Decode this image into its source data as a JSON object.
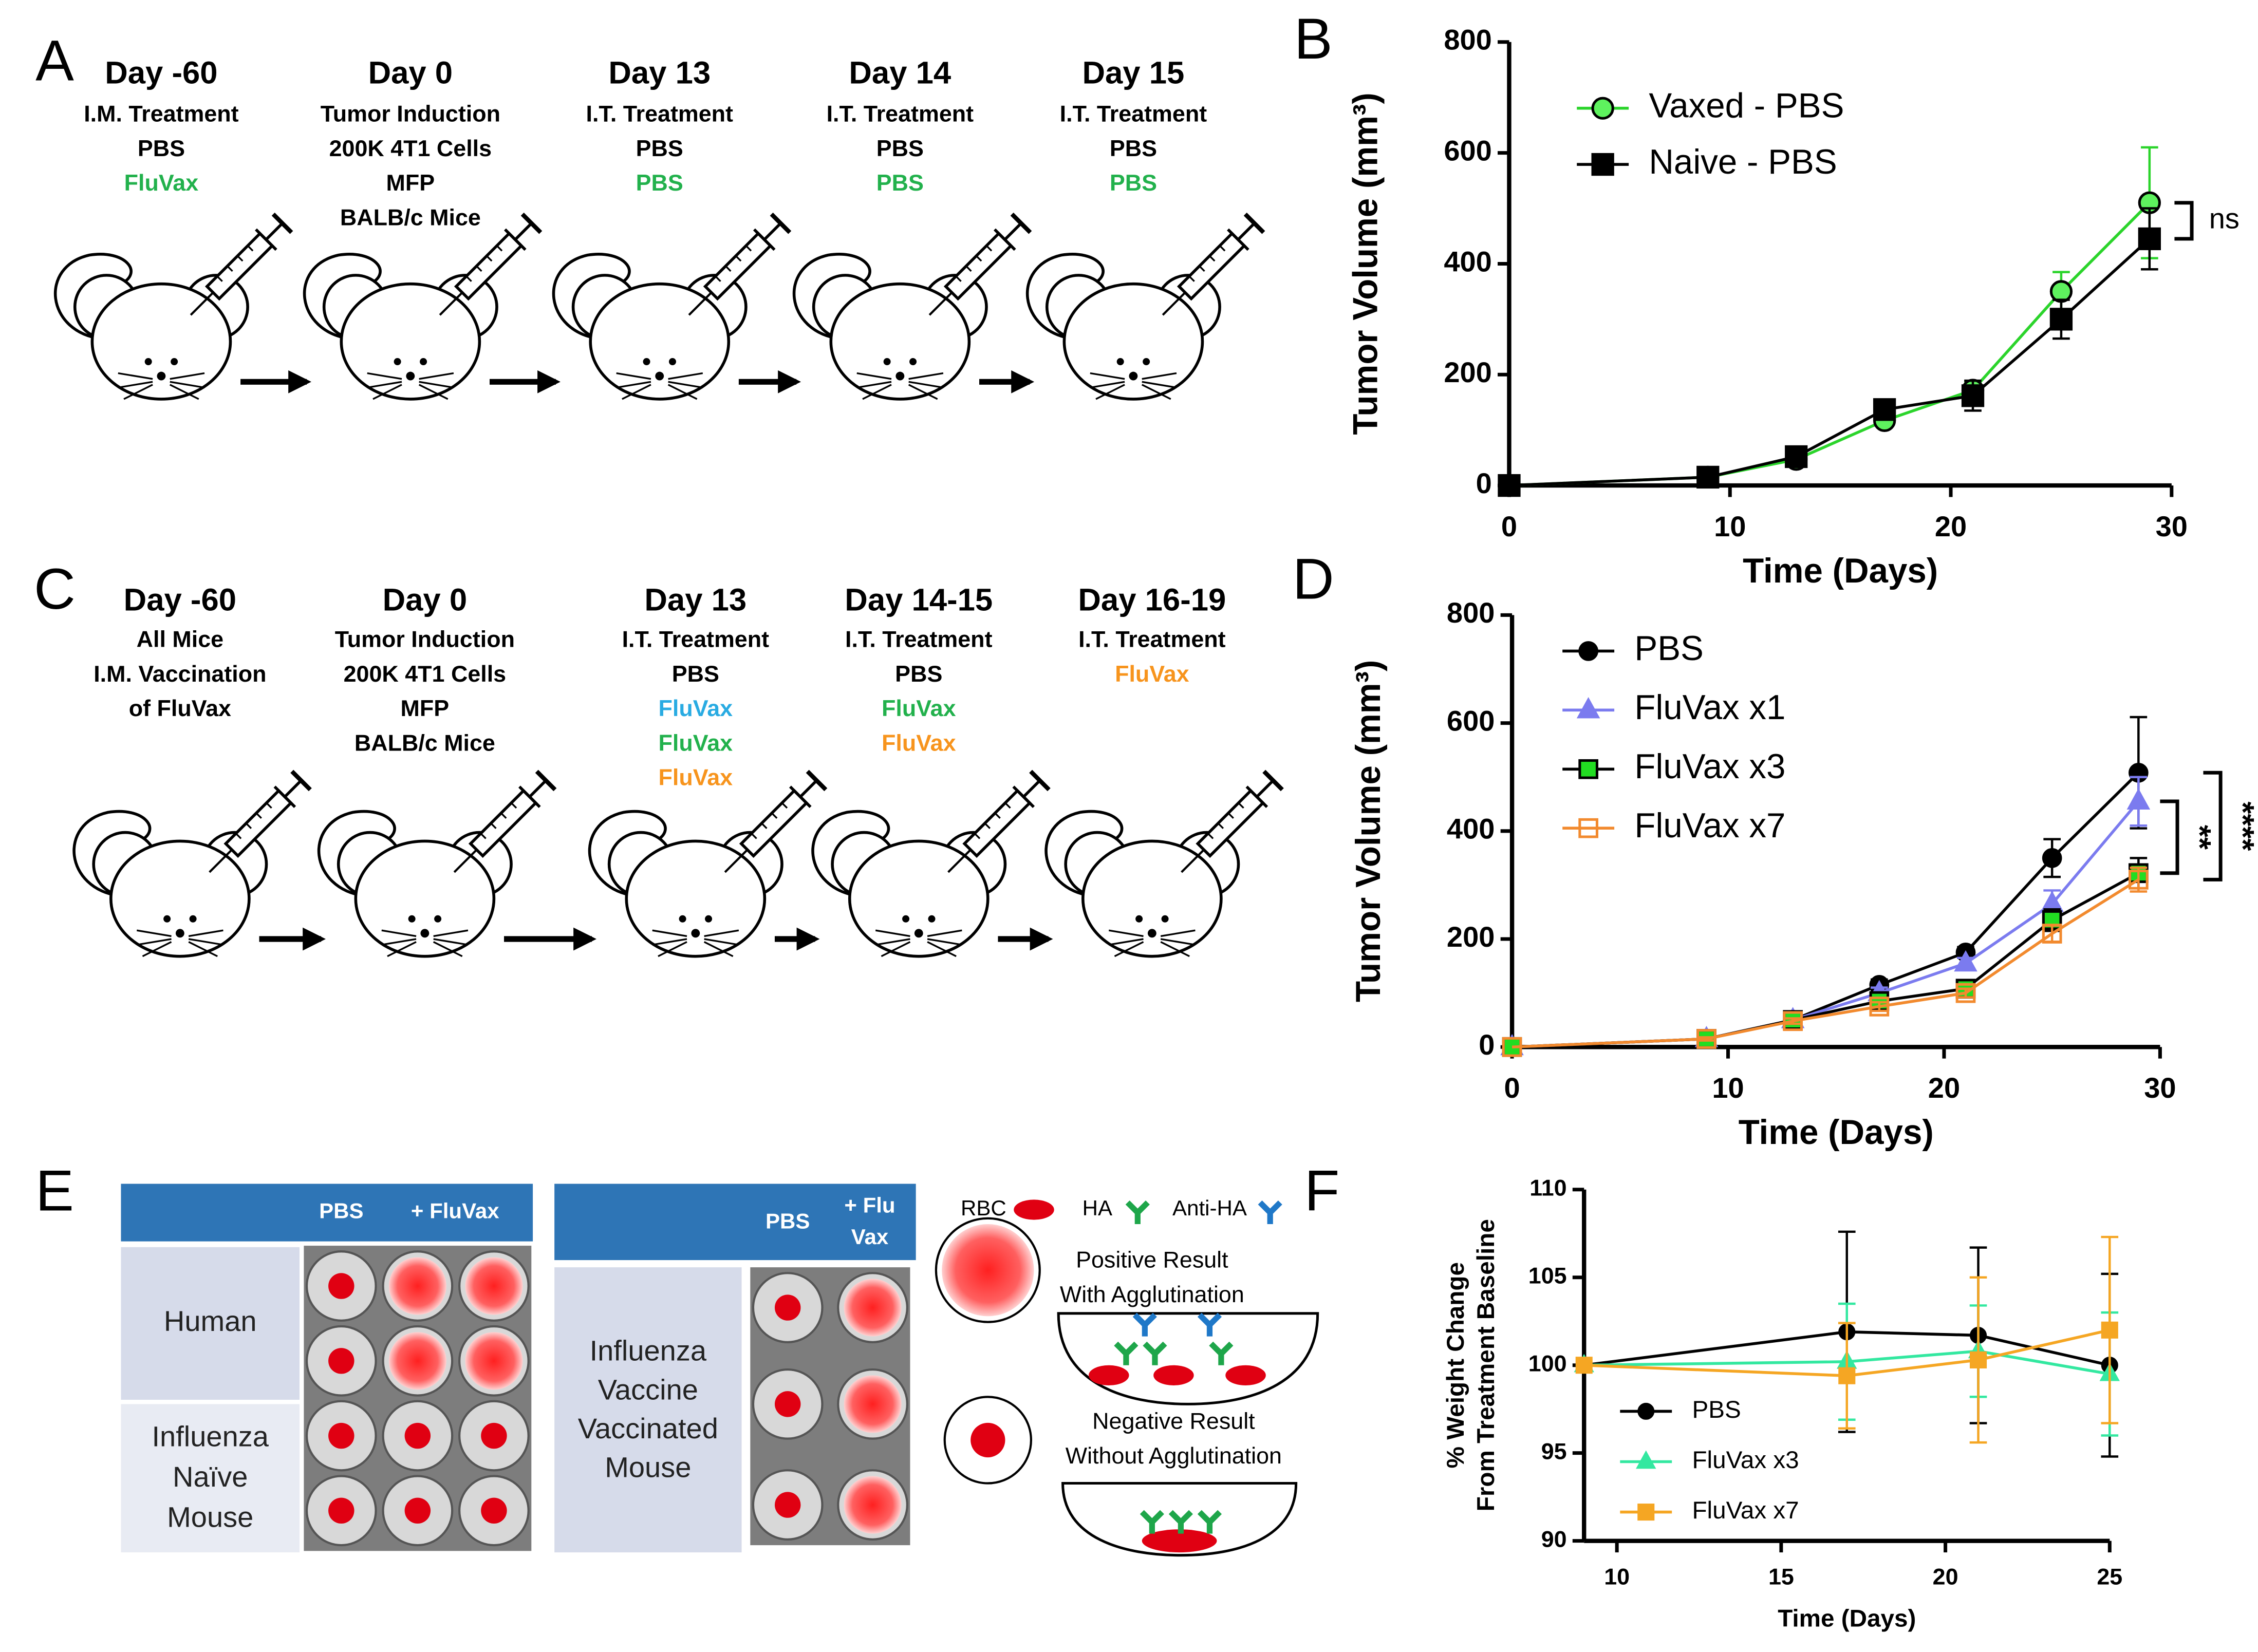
{
  "timeline_a": {
    "panel_label": "A",
    "steps": [
      {
        "day": "Day -60",
        "lines": [
          {
            "text": "I.M. Treatment",
            "color": "#000000"
          },
          {
            "text": "PBS",
            "color": "#000000"
          },
          {
            "text": "FluVax",
            "color": "#22b14c"
          }
        ]
      },
      {
        "day": "Day 0",
        "lines": [
          {
            "text": "Tumor Induction",
            "color": "#000000"
          },
          {
            "text": "200K 4T1 Cells",
            "color": "#000000"
          },
          {
            "text": "MFP",
            "color": "#000000"
          },
          {
            "text": "BALB/c Mice",
            "color": "#000000"
          }
        ]
      },
      {
        "day": "Day 13",
        "lines": [
          {
            "text": "I.T. Treatment",
            "color": "#000000"
          },
          {
            "text": "PBS",
            "color": "#000000"
          },
          {
            "text": "PBS",
            "color": "#22b14c"
          }
        ]
      },
      {
        "day": "Day 14",
        "lines": [
          {
            "text": "I.T. Treatment",
            "color": "#000000"
          },
          {
            "text": "PBS",
            "color": "#000000"
          },
          {
            "text": "PBS",
            "color": "#22b14c"
          }
        ]
      },
      {
        "day": "Day 15",
        "lines": [
          {
            "text": "I.T. Treatment",
            "color": "#000000"
          },
          {
            "text": "PBS",
            "color": "#000000"
          },
          {
            "text": "PBS",
            "color": "#22b14c"
          }
        ]
      }
    ]
  },
  "timeline_c": {
    "panel_label": "C",
    "steps": [
      {
        "day": "Day -60",
        "lines": [
          {
            "text": "All Mice",
            "color": "#000000"
          },
          {
            "text": "I.M. Vaccination",
            "color": "#000000"
          },
          {
            "text": "of FluVax",
            "color": "#000000"
          }
        ]
      },
      {
        "day": "Day 0",
        "lines": [
          {
            "text": "Tumor Induction",
            "color": "#000000"
          },
          {
            "text": "200K 4T1 Cells",
            "color": "#000000"
          },
          {
            "text": "MFP",
            "color": "#000000"
          },
          {
            "text": "BALB/c Mice",
            "color": "#000000"
          }
        ]
      },
      {
        "day": "Day 13",
        "lines": [
          {
            "text": "I.T. Treatment",
            "color": "#000000"
          },
          {
            "text": "PBS",
            "color": "#000000"
          },
          {
            "text": "FluVax",
            "color": "#29abe2"
          },
          {
            "text": "FluVax",
            "color": "#22b14c"
          },
          {
            "text": "FluVax",
            "color": "#f7941d"
          }
        ]
      },
      {
        "day": "Day 14-15",
        "lines": [
          {
            "text": "I.T. Treatment",
            "color": "#000000"
          },
          {
            "text": "PBS",
            "color": "#000000"
          },
          {
            "text": "FluVax",
            "color": "#22b14c"
          },
          {
            "text": "FluVax",
            "color": "#f7941d"
          }
        ]
      },
      {
        "day": "Day 16-19",
        "lines": [
          {
            "text": "I.T. Treatment",
            "color": "#000000"
          },
          {
            "text": "FluVax",
            "color": "#f7941d"
          }
        ]
      }
    ]
  },
  "chart_data": [
    {
      "type": "line",
      "panel_label": "B",
      "xlabel": "Time (Days)",
      "ylabel": "Tumor Volume (mm³)",
      "x": [
        0,
        9,
        13,
        17,
        21,
        25,
        29
      ],
      "xlim": [
        0,
        30
      ],
      "xticks": [
        0,
        10,
        20,
        30
      ],
      "ylim": [
        0,
        800
      ],
      "yticks": [
        0,
        200,
        400,
        600,
        800
      ],
      "legend": "upper left",
      "annotations": [
        "ns"
      ],
      "series": [
        {
          "name": "Vaxed - PBS",
          "color": "#2bd42b",
          "marker": "circle",
          "marker_fill": "#5ef25e",
          "values": [
            0,
            15,
            47,
            117,
            172,
            350,
            510
          ],
          "errors": [
            0,
            3,
            6,
            10,
            15,
            35,
            100
          ]
        },
        {
          "name": "Naive - PBS",
          "color": "#000000",
          "marker": "square",
          "marker_fill": "#000000",
          "values": [
            0,
            15,
            52,
            137,
            162,
            300,
            445
          ],
          "errors": [
            0,
            3,
            6,
            10,
            27,
            35,
            55
          ]
        }
      ]
    },
    {
      "type": "line",
      "panel_label": "D",
      "xlabel": "Time (Days)",
      "ylabel": "Tumor Volume (mm³)",
      "x": [
        0,
        9,
        13,
        17,
        21,
        25,
        29
      ],
      "xlim": [
        0,
        30
      ],
      "xticks": [
        0,
        10,
        20,
        30
      ],
      "ylim": [
        0,
        800
      ],
      "yticks": [
        0,
        200,
        400,
        600,
        800
      ],
      "legend": "upper left",
      "annotations": [
        "**",
        "****"
      ],
      "series": [
        {
          "name": "PBS",
          "color": "#000000",
          "marker": "circle",
          "marker_fill": "#000000",
          "values": [
            0,
            15,
            50,
            115,
            175,
            350,
            508
          ],
          "errors": [
            0,
            3,
            5,
            10,
            10,
            35,
            103
          ]
        },
        {
          "name": "FluVax x1",
          "color": "#7b7bef",
          "marker": "triangle",
          "marker_fill": "#7b7bef",
          "values": [
            0,
            15,
            50,
            100,
            155,
            265,
            455
          ],
          "errors": [
            0,
            3,
            5,
            10,
            10,
            25,
            45
          ]
        },
        {
          "name": "FluVax x3",
          "color": "#000000",
          "marker": "square",
          "marker_fill": "#22dd22",
          "values": [
            0,
            15,
            50,
            85,
            108,
            235,
            322
          ],
          "errors": [
            0,
            3,
            5,
            8,
            8,
            20,
            28
          ]
        },
        {
          "name": "FluVax x7",
          "color": "#f28a2e",
          "marker": "square",
          "marker_fill": "none",
          "values": [
            0,
            15,
            48,
            75,
            100,
            210,
            310
          ],
          "errors": [
            0,
            3,
            5,
            8,
            8,
            15,
            22
          ]
        }
      ]
    },
    {
      "type": "line",
      "panel_label": "F",
      "xlabel": "Time (Days)",
      "ylabel": [
        "% Weight Change",
        "From Treatment Baseline"
      ],
      "x": [
        9,
        17,
        21,
        25
      ],
      "xlim": [
        9,
        25
      ],
      "xticks": [
        10,
        15,
        20,
        25
      ],
      "ylim": [
        90,
        110
      ],
      "yticks": [
        90,
        95,
        100,
        105,
        110
      ],
      "legend": "lower left",
      "series": [
        {
          "name": "PBS",
          "color": "#000000",
          "marker": "circle",
          "marker_fill": "#000000",
          "values": [
            100,
            101.9,
            101.7,
            100
          ],
          "errors": [
            0,
            5.7,
            5,
            5.2
          ]
        },
        {
          "name": "FluVax x3",
          "color": "#33e8a0",
          "marker": "triangle",
          "marker_fill": "#33e8a0",
          "values": [
            100,
            100.2,
            100.8,
            99.5
          ],
          "errors": [
            0,
            3.3,
            2.6,
            3.5
          ]
        },
        {
          "name": "FluVax x7",
          "color": "#f5a623",
          "marker": "square",
          "marker_fill": "#f5a623",
          "values": [
            100,
            99.4,
            100.3,
            102
          ],
          "errors": [
            0,
            3,
            4.7,
            5.3
          ]
        }
      ]
    }
  ],
  "panel_e": {
    "panel_label": "E",
    "table_1": {
      "headers": [
        [
          "PBS"
        ],
        [
          "+ FluVax"
        ]
      ],
      "rows": [
        [
          "Human"
        ],
        [
          "Influenza",
          "Naïve",
          "Mouse"
        ]
      ]
    },
    "table_2": {
      "headers": [
        [
          "PBS"
        ],
        [
          "+ Flu",
          "Vax"
        ]
      ],
      "rows": [
        [
          "Influenza",
          "Vaccine",
          "Vaccinated",
          "Mouse"
        ]
      ]
    },
    "key": {
      "rbc": "RBC",
      "ha": "HA",
      "anti_ha": "Anti-HA"
    },
    "positive": [
      "Positive Result",
      "With Agglutination"
    ],
    "negative": [
      "Negative Result",
      "Without Agglutination"
    ]
  }
}
